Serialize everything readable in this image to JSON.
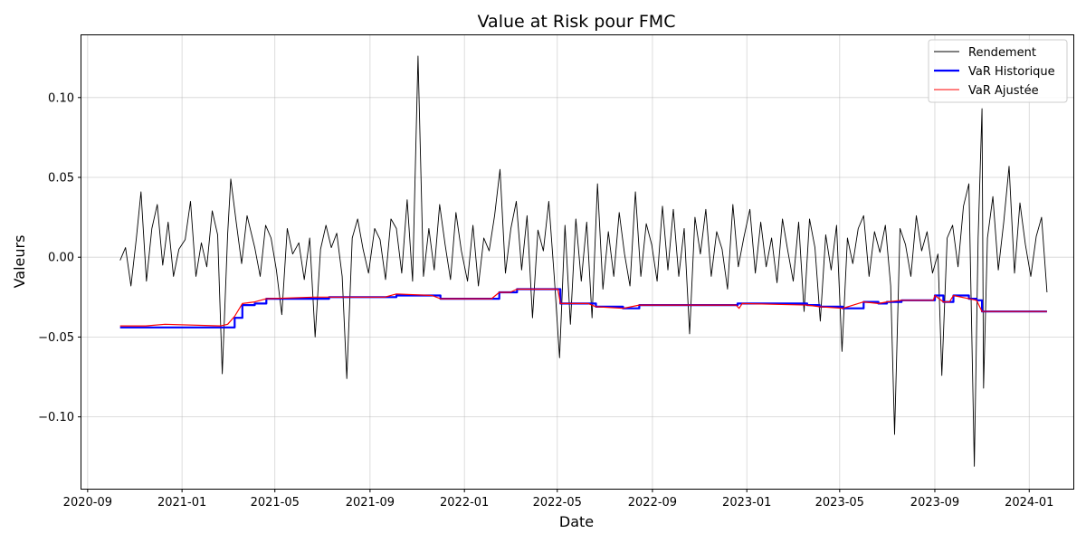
{
  "chart_data": {
    "type": "line",
    "title": "Value at Risk pour FMC",
    "xlabel": "Date",
    "ylabel": "Valeurs",
    "xlim": [
      "2020-08-24",
      "2024-02-27"
    ],
    "ylim": [
      -0.145,
      0.139
    ],
    "x_ticks": [
      "2020-09",
      "2021-01",
      "2021-05",
      "2021-09",
      "2022-01",
      "2022-05",
      "2022-09",
      "2023-01",
      "2023-05",
      "2023-09",
      "2024-01"
    ],
    "y_ticks": [
      -0.1,
      -0.05,
      0.0,
      0.05,
      0.1
    ],
    "y_tick_labels": [
      "−0.10",
      "−0.05",
      "0.00",
      "0.05",
      "0.10"
    ],
    "grid": true,
    "legend_position": "top-right",
    "series": [
      {
        "name": "Rendement",
        "color": "#000000",
        "style": "thin-line",
        "points": [
          [
            "2020-10-13",
            -0.002
          ],
          [
            "2020-10-20",
            0.006
          ],
          [
            "2020-10-27",
            -0.018
          ],
          [
            "2020-11-03",
            0.012
          ],
          [
            "2020-11-09",
            0.041
          ],
          [
            "2020-11-16",
            -0.015
          ],
          [
            "2020-11-23",
            0.018
          ],
          [
            "2020-11-30",
            0.033
          ],
          [
            "2020-12-07",
            -0.005
          ],
          [
            "2020-12-14",
            0.022
          ],
          [
            "2020-12-21",
            -0.012
          ],
          [
            "2020-12-28",
            0.005
          ],
          [
            "2021-01-05",
            0.011
          ],
          [
            "2021-01-12",
            0.035
          ],
          [
            "2021-01-19",
            -0.012
          ],
          [
            "2021-01-26",
            0.009
          ],
          [
            "2021-02-02",
            -0.006
          ],
          [
            "2021-02-09",
            0.029
          ],
          [
            "2021-02-16",
            0.014
          ],
          [
            "2021-02-22",
            -0.073
          ],
          [
            "2021-03-01",
            0.015
          ],
          [
            "2021-03-05",
            0.049
          ],
          [
            "2021-03-12",
            0.022
          ],
          [
            "2021-03-19",
            -0.004
          ],
          [
            "2021-03-26",
            0.026
          ],
          [
            "2021-04-05",
            0.006
          ],
          [
            "2021-04-12",
            -0.012
          ],
          [
            "2021-04-19",
            0.02
          ],
          [
            "2021-04-26",
            0.012
          ],
          [
            "2021-05-03",
            -0.008
          ],
          [
            "2021-05-10",
            -0.036
          ],
          [
            "2021-05-17",
            0.018
          ],
          [
            "2021-05-24",
            0.002
          ],
          [
            "2021-06-01",
            0.009
          ],
          [
            "2021-06-08",
            -0.014
          ],
          [
            "2021-06-15",
            0.012
          ],
          [
            "2021-06-22",
            -0.05
          ],
          [
            "2021-06-29",
            0.005
          ],
          [
            "2021-07-06",
            0.02
          ],
          [
            "2021-07-13",
            0.006
          ],
          [
            "2021-07-20",
            0.015
          ],
          [
            "2021-07-27",
            -0.012
          ],
          [
            "2021-08-02",
            -0.076
          ],
          [
            "2021-08-09",
            0.012
          ],
          [
            "2021-08-16",
            0.024
          ],
          [
            "2021-08-23",
            0.005
          ],
          [
            "2021-08-30",
            -0.01
          ],
          [
            "2021-09-07",
            0.018
          ],
          [
            "2021-09-14",
            0.011
          ],
          [
            "2021-09-21",
            -0.014
          ],
          [
            "2021-09-28",
            0.024
          ],
          [
            "2021-10-05",
            0.018
          ],
          [
            "2021-10-12",
            -0.01
          ],
          [
            "2021-10-19",
            0.036
          ],
          [
            "2021-10-26",
            -0.015
          ],
          [
            "2021-11-02",
            0.126
          ],
          [
            "2021-11-09",
            -0.012
          ],
          [
            "2021-11-16",
            0.018
          ],
          [
            "2021-11-23",
            -0.008
          ],
          [
            "2021-11-30",
            0.033
          ],
          [
            "2021-12-07",
            0.008
          ],
          [
            "2021-12-14",
            -0.014
          ],
          [
            "2021-12-21",
            0.028
          ],
          [
            "2021-12-28",
            0.004
          ],
          [
            "2022-01-05",
            -0.015
          ],
          [
            "2022-01-12",
            0.02
          ],
          [
            "2022-01-19",
            -0.018
          ],
          [
            "2022-01-26",
            0.012
          ],
          [
            "2022-02-02",
            0.004
          ],
          [
            "2022-02-09",
            0.026
          ],
          [
            "2022-02-16",
            0.055
          ],
          [
            "2022-02-23",
            -0.01
          ],
          [
            "2022-03-02",
            0.018
          ],
          [
            "2022-03-09",
            0.035
          ],
          [
            "2022-03-16",
            -0.008
          ],
          [
            "2022-03-23",
            0.026
          ],
          [
            "2022-03-30",
            -0.038
          ],
          [
            "2022-04-06",
            0.017
          ],
          [
            "2022-04-13",
            0.004
          ],
          [
            "2022-04-20",
            0.035
          ],
          [
            "2022-04-27",
            -0.012
          ],
          [
            "2022-05-04",
            -0.063
          ],
          [
            "2022-05-11",
            0.02
          ],
          [
            "2022-05-18",
            -0.042
          ],
          [
            "2022-05-25",
            0.024
          ],
          [
            "2022-06-01",
            -0.015
          ],
          [
            "2022-06-08",
            0.022
          ],
          [
            "2022-06-15",
            -0.038
          ],
          [
            "2022-06-22",
            0.046
          ],
          [
            "2022-06-29",
            -0.02
          ],
          [
            "2022-07-06",
            0.016
          ],
          [
            "2022-07-13",
            -0.012
          ],
          [
            "2022-07-20",
            0.028
          ],
          [
            "2022-07-27",
            0.002
          ],
          [
            "2022-08-03",
            -0.018
          ],
          [
            "2022-08-10",
            0.041
          ],
          [
            "2022-08-17",
            -0.012
          ],
          [
            "2022-08-24",
            0.021
          ],
          [
            "2022-08-31",
            0.008
          ],
          [
            "2022-09-07",
            -0.015
          ],
          [
            "2022-09-14",
            0.032
          ],
          [
            "2022-09-21",
            -0.008
          ],
          [
            "2022-09-28",
            0.03
          ],
          [
            "2022-10-05",
            -0.012
          ],
          [
            "2022-10-12",
            0.018
          ],
          [
            "2022-10-19",
            -0.048
          ],
          [
            "2022-10-26",
            0.025
          ],
          [
            "2022-11-02",
            0.002
          ],
          [
            "2022-11-09",
            0.03
          ],
          [
            "2022-11-16",
            -0.012
          ],
          [
            "2022-11-23",
            0.016
          ],
          [
            "2022-11-30",
            0.005
          ],
          [
            "2022-12-07",
            -0.02
          ],
          [
            "2022-12-14",
            0.033
          ],
          [
            "2022-12-21",
            -0.006
          ],
          [
            "2022-12-28",
            0.012
          ],
          [
            "2023-01-05",
            0.03
          ],
          [
            "2023-01-12",
            -0.01
          ],
          [
            "2023-01-19",
            0.022
          ],
          [
            "2023-01-26",
            -0.006
          ],
          [
            "2023-02-02",
            0.012
          ],
          [
            "2023-02-09",
            -0.016
          ],
          [
            "2023-02-16",
            0.024
          ],
          [
            "2023-02-23",
            0.004
          ],
          [
            "2023-03-02",
            -0.015
          ],
          [
            "2023-03-09",
            0.022
          ],
          [
            "2023-03-16",
            -0.034
          ],
          [
            "2023-03-23",
            0.024
          ],
          [
            "2023-03-30",
            0.006
          ],
          [
            "2023-04-06",
            -0.04
          ],
          [
            "2023-04-13",
            0.014
          ],
          [
            "2023-04-20",
            -0.008
          ],
          [
            "2023-04-27",
            0.02
          ],
          [
            "2023-05-04",
            -0.059
          ],
          [
            "2023-05-11",
            0.012
          ],
          [
            "2023-05-18",
            -0.004
          ],
          [
            "2023-05-25",
            0.018
          ],
          [
            "2023-06-01",
            0.026
          ],
          [
            "2023-06-08",
            -0.012
          ],
          [
            "2023-06-15",
            0.016
          ],
          [
            "2023-06-22",
            0.003
          ],
          [
            "2023-06-29",
            0.02
          ],
          [
            "2023-07-06",
            -0.018
          ],
          [
            "2023-07-11",
            -0.111
          ],
          [
            "2023-07-18",
            0.018
          ],
          [
            "2023-07-25",
            0.008
          ],
          [
            "2023-08-01",
            -0.012
          ],
          [
            "2023-08-08",
            0.026
          ],
          [
            "2023-08-15",
            0.004
          ],
          [
            "2023-08-22",
            0.016
          ],
          [
            "2023-08-29",
            -0.01
          ],
          [
            "2023-09-05",
            0.002
          ],
          [
            "2023-09-10",
            -0.074
          ],
          [
            "2023-09-17",
            0.012
          ],
          [
            "2023-09-24",
            0.02
          ],
          [
            "2023-10-01",
            -0.006
          ],
          [
            "2023-10-08",
            0.032
          ],
          [
            "2023-10-15",
            0.046
          ],
          [
            "2023-10-22",
            -0.131
          ],
          [
            "2023-10-27",
            0.012
          ],
          [
            "2023-11-01",
            0.093
          ],
          [
            "2023-11-03",
            -0.082
          ],
          [
            "2023-11-08",
            0.012
          ],
          [
            "2023-11-15",
            0.038
          ],
          [
            "2023-11-22",
            -0.008
          ],
          [
            "2023-11-29",
            0.022
          ],
          [
            "2023-12-06",
            0.057
          ],
          [
            "2023-12-13",
            -0.01
          ],
          [
            "2023-12-20",
            0.034
          ],
          [
            "2023-12-27",
            0.008
          ],
          [
            "2024-01-03",
            -0.012
          ],
          [
            "2024-01-10",
            0.013
          ],
          [
            "2024-01-17",
            0.025
          ],
          [
            "2024-01-24",
            -0.022
          ]
        ]
      },
      {
        "name": "VaR Historique",
        "color": "#0000ff",
        "style": "thick-step",
        "points": [
          [
            "2020-10-13",
            -0.044
          ],
          [
            "2021-03-01",
            -0.044
          ],
          [
            "2021-03-10",
            -0.038
          ],
          [
            "2021-03-20",
            -0.03
          ],
          [
            "2021-04-05",
            -0.029
          ],
          [
            "2021-04-20",
            -0.026
          ],
          [
            "2021-06-20",
            -0.026
          ],
          [
            "2021-07-10",
            -0.025
          ],
          [
            "2021-09-20",
            -0.025
          ],
          [
            "2021-10-05",
            -0.024
          ],
          [
            "2021-11-20",
            -0.024
          ],
          [
            "2021-12-01",
            -0.026
          ],
          [
            "2022-02-05",
            -0.026
          ],
          [
            "2022-02-15",
            -0.022
          ],
          [
            "2022-03-01",
            -0.022
          ],
          [
            "2022-03-10",
            -0.02
          ],
          [
            "2022-05-02",
            -0.02
          ],
          [
            "2022-05-05",
            -0.029
          ],
          [
            "2022-06-10",
            -0.029
          ],
          [
            "2022-06-20",
            -0.031
          ],
          [
            "2022-07-25",
            -0.032
          ],
          [
            "2022-08-15",
            -0.03
          ],
          [
            "2022-12-20",
            -0.029
          ],
          [
            "2023-03-20",
            -0.03
          ],
          [
            "2023-04-05",
            -0.031
          ],
          [
            "2023-05-05",
            -0.032
          ],
          [
            "2023-06-01",
            -0.028
          ],
          [
            "2023-06-20",
            -0.029
          ],
          [
            "2023-07-01",
            -0.028
          ],
          [
            "2023-07-20",
            -0.027
          ],
          [
            "2023-08-30",
            -0.027
          ],
          [
            "2023-09-01",
            -0.024
          ],
          [
            "2023-09-12",
            -0.028
          ],
          [
            "2023-09-20",
            -0.028
          ],
          [
            "2023-09-25",
            -0.024
          ],
          [
            "2023-10-15",
            -0.026
          ],
          [
            "2023-10-25",
            -0.027
          ],
          [
            "2023-11-01",
            -0.034
          ],
          [
            "2024-01-24",
            -0.034
          ]
        ]
      },
      {
        "name": "VaR Ajustée",
        "color": "#ff0000",
        "style": "thin-line",
        "points": [
          [
            "2020-10-13",
            -0.043
          ],
          [
            "2020-11-15",
            -0.043
          ],
          [
            "2020-12-10",
            -0.042
          ],
          [
            "2021-02-20",
            -0.043
          ],
          [
            "2021-03-01",
            -0.042
          ],
          [
            "2021-03-10",
            -0.037
          ],
          [
            "2021-03-20",
            -0.029
          ],
          [
            "2021-04-05",
            -0.028
          ],
          [
            "2021-04-20",
            -0.026
          ],
          [
            "2021-06-20",
            -0.025
          ],
          [
            "2021-07-10",
            -0.025
          ],
          [
            "2021-09-20",
            -0.025
          ],
          [
            "2021-10-05",
            -0.023
          ],
          [
            "2021-11-20",
            -0.024
          ],
          [
            "2021-12-01",
            -0.026
          ],
          [
            "2022-02-05",
            -0.026
          ],
          [
            "2022-02-15",
            -0.022
          ],
          [
            "2022-03-01",
            -0.022
          ],
          [
            "2022-03-10",
            -0.02
          ],
          [
            "2022-05-02",
            -0.02
          ],
          [
            "2022-05-05",
            -0.029
          ],
          [
            "2022-06-10",
            -0.029
          ],
          [
            "2022-06-20",
            -0.031
          ],
          [
            "2022-07-25",
            -0.032
          ],
          [
            "2022-08-15",
            -0.03
          ],
          [
            "2022-12-18",
            -0.03
          ],
          [
            "2022-12-22",
            -0.032
          ],
          [
            "2022-12-26",
            -0.029
          ],
          [
            "2023-03-20",
            -0.03
          ],
          [
            "2023-04-05",
            -0.031
          ],
          [
            "2023-05-05",
            -0.032
          ],
          [
            "2023-06-01",
            -0.028
          ],
          [
            "2023-06-20",
            -0.029
          ],
          [
            "2023-07-01",
            -0.028
          ],
          [
            "2023-07-20",
            -0.027
          ],
          [
            "2023-08-30",
            -0.027
          ],
          [
            "2023-09-01",
            -0.024
          ],
          [
            "2023-09-12",
            -0.028
          ],
          [
            "2023-09-20",
            -0.028
          ],
          [
            "2023-09-25",
            -0.024
          ],
          [
            "2023-10-15",
            -0.026
          ],
          [
            "2023-10-25",
            -0.027
          ],
          [
            "2023-11-01",
            -0.034
          ],
          [
            "2024-01-24",
            -0.034
          ]
        ]
      }
    ]
  }
}
